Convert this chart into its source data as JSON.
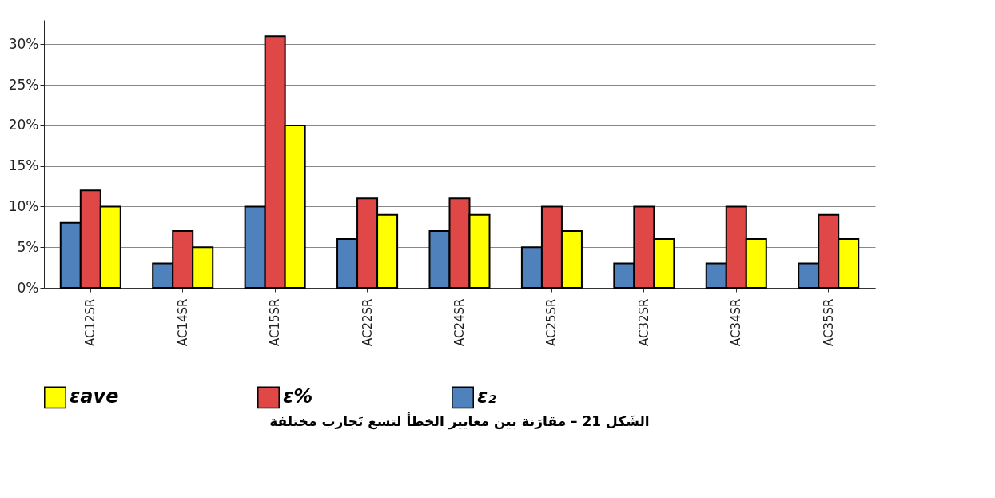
{
  "chart_data": {
    "type": "bar",
    "title": "الشَكل 21 – مقارَنة بين معايير الخطأ لتسع تَجارب مختلفة",
    "categories": [
      "AC12SR",
      "AC14SR",
      "AC15SR",
      "AC22SR",
      "AC24SR",
      "AC25SR",
      "AC32SR",
      "AC34SR",
      "AC35SR"
    ],
    "series": [
      {
        "name": "ε₂",
        "color": "#4f81bd",
        "values": [
          8,
          3,
          10,
          6,
          7,
          5,
          3,
          3,
          3
        ]
      },
      {
        "name": "ε%",
        "color": "#e04848",
        "values": [
          12,
          7,
          31,
          11,
          11,
          10,
          10,
          10,
          9
        ]
      },
      {
        "name": "εave",
        "color": "#ffff00",
        "values": [
          10,
          5,
          20,
          9,
          9,
          7,
          6,
          6,
          6
        ]
      }
    ],
    "ylim": [
      0,
      33
    ],
    "yticks": [
      {
        "value": 0,
        "label": "0%"
      },
      {
        "value": 5,
        "label": "5%"
      },
      {
        "value": 10,
        "label": "10%"
      },
      {
        "value": 15,
        "label": "15%"
      },
      {
        "value": 20,
        "label": "20%"
      },
      {
        "value": 25,
        "label": "25%"
      },
      {
        "value": 30,
        "label": "30%"
      }
    ],
    "grid": "y",
    "legend": "bottom"
  }
}
